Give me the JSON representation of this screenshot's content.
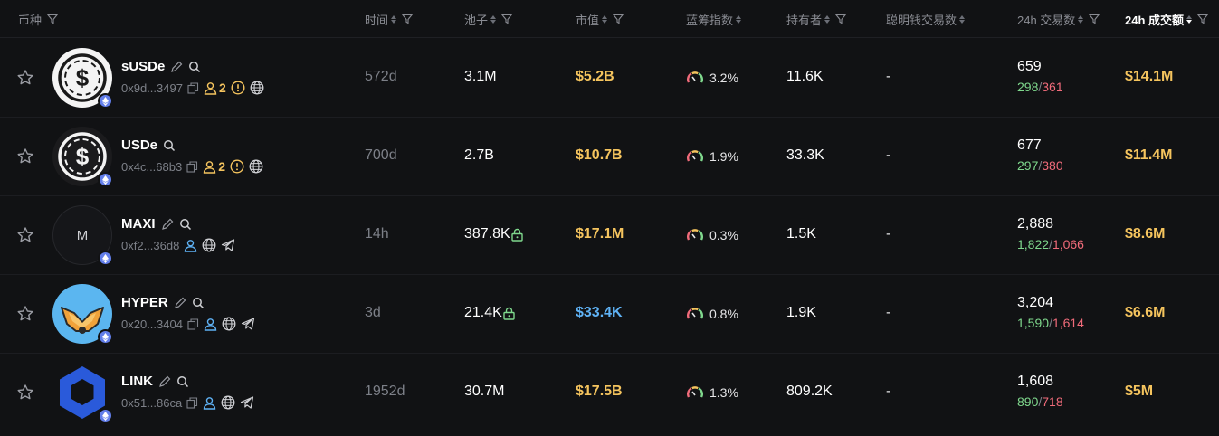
{
  "colors": {
    "gold": "#f5c45e",
    "blue_value": "#5fb2f5",
    "buy": "#7fd88d",
    "sell": "#f06b7a"
  },
  "header": {
    "token": "币种",
    "age": "时间",
    "pool": "池子",
    "mcap": "市值",
    "bluechip": "蓝筹指数",
    "holders": "持有者",
    "smart": "聪明钱交易数",
    "tx24": "24h 交易数",
    "vol24": "24h 成交额"
  },
  "rows": [
    {
      "symbol": "sUSDe",
      "addr": "0x9d...3497",
      "holder_badge": "2",
      "age": "572d",
      "pool": "3.1M",
      "pool_lock": false,
      "mcap": "$5.2B",
      "mcap_color": "gold",
      "bluechip": "3.2%",
      "holders": "11.6K",
      "smart": "-",
      "tx": "659",
      "buys": "298",
      "sells": "361",
      "vol": "$14.1M",
      "logo": "usde-light",
      "socials": [
        "copy-icon",
        "holder-icon",
        "warning-icon",
        "globe-icon"
      ]
    },
    {
      "symbol": "USDe",
      "addr": "0x4c...68b3",
      "holder_badge": "2",
      "age": "700d",
      "pool": "2.7B",
      "pool_lock": false,
      "mcap": "$10.7B",
      "mcap_color": "gold",
      "bluechip": "1.9%",
      "holders": "33.3K",
      "smart": "-",
      "tx": "677",
      "buys": "297",
      "sells": "380",
      "vol": "$11.4M",
      "logo": "usde-dark",
      "socials": [
        "copy-icon",
        "holder-icon",
        "warning-icon",
        "globe-icon"
      ]
    },
    {
      "symbol": "MAXI",
      "addr": "0xf2...36d8",
      "holder_badge": "",
      "age": "14h",
      "pool": "387.8K",
      "pool_lock": true,
      "mcap": "$17.1M",
      "mcap_color": "gold",
      "bluechip": "0.3%",
      "holders": "1.5K",
      "smart": "-",
      "tx": "2,888",
      "buys": "1,822",
      "sells": "1,066",
      "vol": "$8.6M",
      "logo_letter": "M",
      "socials": [
        "user-icon",
        "globe-icon",
        "telegram-icon"
      ]
    },
    {
      "symbol": "HYPER",
      "addr": "0x20...3404",
      "holder_badge": "",
      "age": "3d",
      "pool": "21.4K",
      "pool_lock": true,
      "mcap": "$33.4K",
      "mcap_color": "blue",
      "bluechip": "0.8%",
      "holders": "1.9K",
      "smart": "-",
      "tx": "3,204",
      "buys": "1,590",
      "sells": "1,614",
      "vol": "$6.6M",
      "logo": "hyper",
      "socials": [
        "copy-icon",
        "user-icon",
        "globe-icon",
        "telegram-icon"
      ]
    },
    {
      "symbol": "LINK",
      "addr": "0x51...86ca",
      "holder_badge": "",
      "age": "1952d",
      "pool": "30.7M",
      "pool_lock": false,
      "mcap": "$17.5B",
      "mcap_color": "gold",
      "bluechip": "1.3%",
      "holders": "809.2K",
      "smart": "-",
      "tx": "1,608",
      "buys": "890",
      "sells": "718",
      "vol": "$5M",
      "logo": "link",
      "socials": [
        "copy-icon",
        "user-icon",
        "globe-icon",
        "telegram-icon"
      ]
    }
  ]
}
